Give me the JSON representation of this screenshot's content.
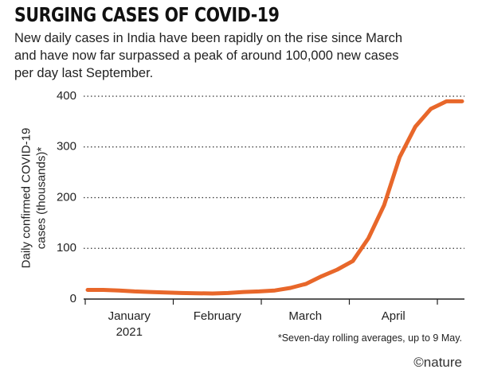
{
  "chart_data": {
    "type": "line",
    "title": "SURGING CASES OF COVID-19",
    "subtitle": "New daily cases in India have been rapidly on the rise since March and have now far surpassed a peak of around 100,000 new cases per day last September.",
    "y_label": [
      "Daily confirmed COVID-19",
      "cases (thousands)*"
    ],
    "months": [
      "January 2021",
      "February",
      "March",
      "April"
    ],
    "values": [
      18,
      18,
      17,
      15,
      14,
      13,
      12,
      11.5,
      11,
      12,
      14,
      15,
      17,
      22,
      30,
      45,
      58,
      75,
      120,
      185,
      280,
      340,
      375,
      390,
      390
    ],
    "color": "#e8672a",
    "ylim": [
      0,
      400
    ],
    "yticks": [
      0,
      100,
      200,
      300,
      400
    ],
    "grid": true,
    "note": "*Seven-day rolling averages, up to 9 May.",
    "logo": "©nature"
  }
}
